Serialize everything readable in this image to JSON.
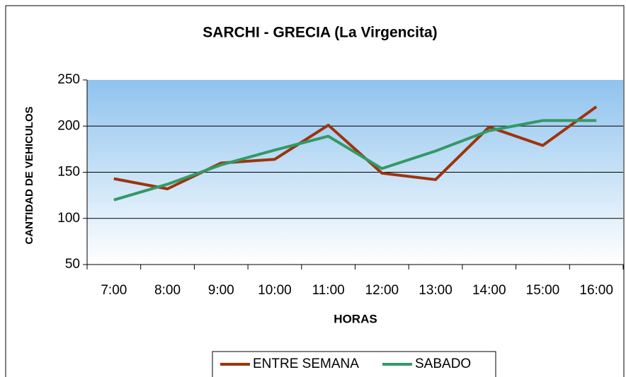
{
  "chart_data": {
    "type": "line",
    "title": "SARCHI - GRECIA (La Virgencita)",
    "x_label": "HORAS",
    "y_label": "CANTIDAD DE VEHICULOS",
    "categories": [
      "7:00",
      "8:00",
      "9:00",
      "10:00",
      "11:00",
      "12:00",
      "13:00",
      "14:00",
      "15:00",
      "16:00"
    ],
    "series": [
      {
        "name": "ENTRE SEMANA",
        "color": "#9c340d",
        "values": [
          143,
          132,
          160,
          164,
          201,
          149,
          142,
          199,
          179,
          221
        ]
      },
      {
        "name": "SABADO",
        "color": "#339966",
        "values": [
          120,
          137,
          158,
          174,
          189,
          154,
          173,
          195,
          206,
          206
        ]
      }
    ],
    "ylim": [
      50,
      250
    ],
    "yticks": [
      50,
      100,
      150,
      200,
      250
    ],
    "grid": true,
    "legend": "bottom"
  }
}
